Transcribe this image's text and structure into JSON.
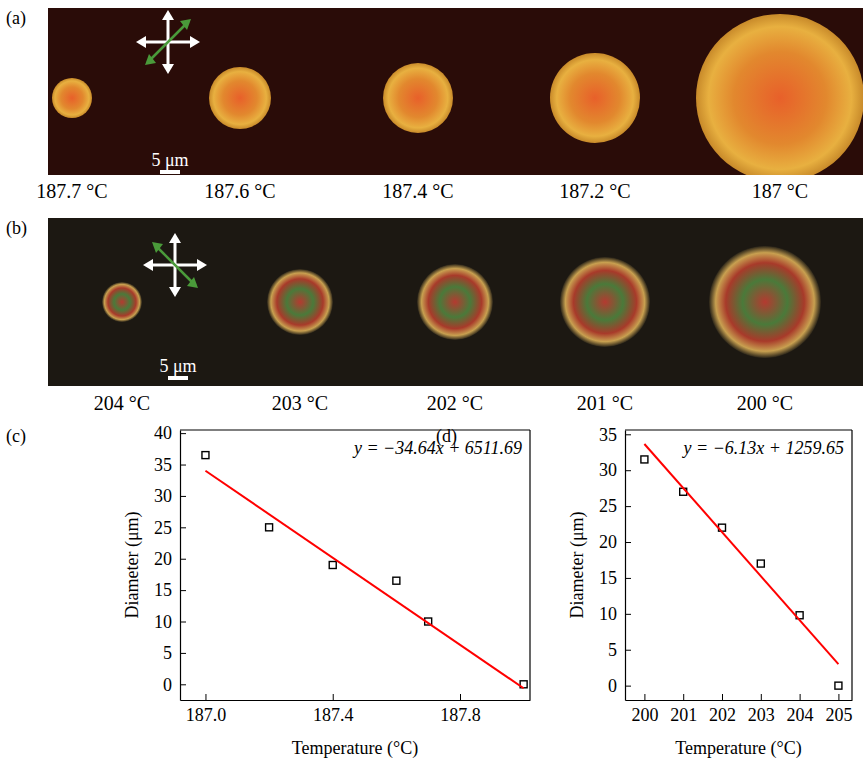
{
  "images": [
    {
      "panel_label": "(a)",
      "scale_bar": "5 μm",
      "labels": [
        "187.7 °C",
        "187.6 °C",
        "187.4 °C",
        "187.2 °C",
        "187 °C"
      ]
    },
    {
      "panel_label": "(b)",
      "scale_bar": "5 μm",
      "labels": [
        "204 °C",
        "203 °C",
        "202 °C",
        "201 °C",
        "200 °C"
      ]
    }
  ],
  "chart_data": [
    {
      "type": "scatter",
      "panel_label": "(c)",
      "x_label": "Temperature (°C)",
      "y_label": "Diameter (μm)",
      "annotation": "y = −34.64x + 6511.69",
      "xlim": [
        186.92,
        188.02
      ],
      "ylim": [
        -2.5,
        40.5
      ],
      "xticks": [
        {
          "value": 187,
          "label": "187.0"
        },
        {
          "value": 187.4,
          "label": "187.4"
        },
        {
          "value": 187.8,
          "label": "187.8"
        }
      ],
      "yticks": [
        0,
        5,
        10,
        15,
        20,
        25,
        30,
        35,
        40
      ],
      "series": [
        {
          "type": "scatter",
          "marker": "square",
          "color": "#000000",
          "x": [
            187,
            187.2,
            187.4,
            187.6,
            187.7,
            188
          ],
          "values": [
            36.5,
            25,
            19,
            16.5,
            10,
            0
          ]
        },
        {
          "type": "line",
          "color": "#ff0000",
          "x": [
            187,
            188
          ],
          "values": [
            34.01,
            -0.63
          ]
        }
      ]
    },
    {
      "type": "scatter",
      "panel_label": "(d)",
      "x_label": "Temperature (°C)",
      "y_label": "Diameter (μm)",
      "annotation": "y = −6.13x + 1259.65",
      "xlim": [
        199.5,
        205.35
      ],
      "ylim": [
        -2,
        35.6
      ],
      "xticks": [
        200,
        201,
        202,
        203,
        204,
        205
      ],
      "yticks": [
        0,
        5,
        10,
        15,
        20,
        25,
        30,
        35
      ],
      "series": [
        {
          "type": "scatter",
          "marker": "square",
          "color": "#000000",
          "x": [
            200,
            201,
            202,
            203,
            204,
            205
          ],
          "values": [
            31.5,
            27,
            22,
            17,
            9.8,
            0
          ]
        },
        {
          "type": "line",
          "color": "#ff0000",
          "x": [
            200,
            205
          ],
          "values": [
            33.65,
            3.0
          ]
        }
      ]
    }
  ]
}
